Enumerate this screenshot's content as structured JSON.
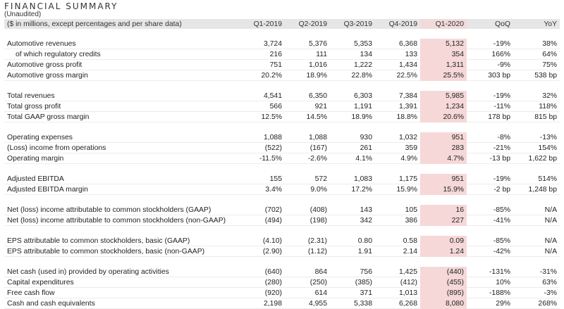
{
  "title": "FINANCIAL SUMMARY",
  "subtitle": "(Unaudited)",
  "header": {
    "label": "($ in millions, except percentages and per share data)",
    "columns": [
      "Q1-2019",
      "Q2-2019",
      "Q3-2019",
      "Q4-2019",
      "Q1-2020",
      "QoQ",
      "YoY"
    ]
  },
  "highlight_color": "#f6d8d8",
  "groups": [
    {
      "rows": [
        {
          "label": "Automotive revenues",
          "indent": false,
          "values": [
            "3,724",
            "5,376",
            "5,353",
            "6,368",
            "5,132",
            "-19%",
            "38%"
          ]
        },
        {
          "label": "of which regulatory credits",
          "indent": true,
          "values": [
            "216",
            "111",
            "134",
            "133",
            "354",
            "166%",
            "64%"
          ]
        },
        {
          "label": "Automotive gross profit",
          "indent": false,
          "values": [
            "751",
            "1,016",
            "1,222",
            "1,434",
            "1,311",
            "-9%",
            "75%"
          ]
        },
        {
          "label": "Automotive gross margin",
          "indent": false,
          "values": [
            "20.2%",
            "18.9%",
            "22.8%",
            "22.5%",
            "25.5%",
            "303 bp",
            "538 bp"
          ]
        }
      ]
    },
    {
      "rows": [
        {
          "label": "Total revenues",
          "indent": false,
          "values": [
            "4,541",
            "6,350",
            "6,303",
            "7,384",
            "5,985",
            "-19%",
            "32%"
          ]
        },
        {
          "label": "Total gross profit",
          "indent": false,
          "values": [
            "566",
            "921",
            "1,191",
            "1,391",
            "1,234",
            "-11%",
            "118%"
          ]
        },
        {
          "label": "Total GAAP gross margin",
          "indent": false,
          "values": [
            "12.5%",
            "14.5%",
            "18.9%",
            "18.8%",
            "20.6%",
            "178 bp",
            "815 bp"
          ]
        }
      ]
    },
    {
      "rows": [
        {
          "label": "Operating expenses",
          "indent": false,
          "values": [
            "1,088",
            "1,088",
            "930",
            "1,032",
            "951",
            "-8%",
            "-13%"
          ]
        },
        {
          "label": "(Loss) income from operations",
          "indent": false,
          "values": [
            "(522)",
            "(167)",
            "261",
            "359",
            "283",
            "-21%",
            "154%"
          ]
        },
        {
          "label": "Operating margin",
          "indent": false,
          "values": [
            "-11.5%",
            "-2.6%",
            "4.1%",
            "4.9%",
            "4.7%",
            "-13 bp",
            "1,622 bp"
          ]
        }
      ]
    },
    {
      "rows": [
        {
          "label": "Adjusted EBITDA",
          "indent": false,
          "values": [
            "155",
            "572",
            "1,083",
            "1,175",
            "951",
            "-19%",
            "514%"
          ]
        },
        {
          "label": "Adjusted EBITDA margin",
          "indent": false,
          "values": [
            "3.4%",
            "9.0%",
            "17.2%",
            "15.9%",
            "15.9%",
            "-2 bp",
            "1,248 bp"
          ]
        }
      ]
    },
    {
      "rows": [
        {
          "label": "Net (loss) income attributable to common stockholders (GAAP)",
          "indent": false,
          "values": [
            "(702)",
            "(408)",
            "143",
            "105",
            "16",
            "-85%",
            "N/A"
          ]
        },
        {
          "label": "Net (loss) income attributable to common stockholders (non-GAAP)",
          "indent": false,
          "values": [
            "(494)",
            "(198)",
            "342",
            "386",
            "227",
            "-41%",
            "N/A"
          ]
        }
      ]
    },
    {
      "rows": [
        {
          "label": "EPS attributable to common stockholders, basic (GAAP)",
          "indent": false,
          "values": [
            "(4.10)",
            "(2.31)",
            "0.80",
            "0.58",
            "0.09",
            "-85%",
            "N/A"
          ]
        },
        {
          "label": "EPS attributable to common stockholders, basic (non-GAAP)",
          "indent": false,
          "values": [
            "(2.90)",
            "(1.12)",
            "1.91",
            "2.14",
            "1.24",
            "-42%",
            "N/A"
          ]
        }
      ]
    },
    {
      "rows": [
        {
          "label": "Net cash (used in) provided by operating activities",
          "indent": false,
          "values": [
            "(640)",
            "864",
            "756",
            "1,425",
            "(440)",
            "-131%",
            "-31%"
          ]
        },
        {
          "label": "Capital expenditures",
          "indent": false,
          "values": [
            "(280)",
            "(250)",
            "(385)",
            "(412)",
            "(455)",
            "10%",
            "63%"
          ]
        },
        {
          "label": "Free cash flow",
          "indent": false,
          "values": [
            "(920)",
            "614",
            "371",
            "1,013",
            "(895)",
            "-188%",
            "-3%"
          ]
        },
        {
          "label": "Cash and cash equivalents",
          "indent": false,
          "values": [
            "2,198",
            "4,955",
            "5,338",
            "6,268",
            "8,080",
            "29%",
            "268%"
          ]
        }
      ]
    }
  ]
}
